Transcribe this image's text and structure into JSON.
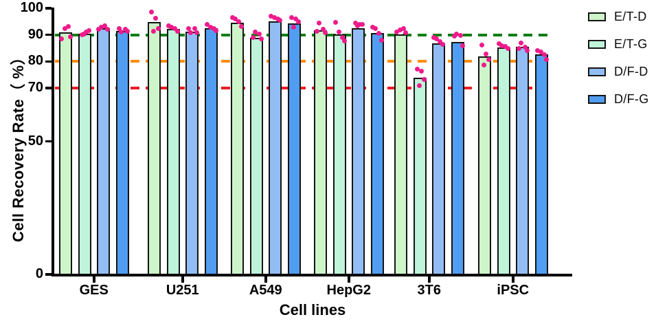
{
  "chart_data": {
    "type": "bar",
    "title": "",
    "xlabel": "Cell lines",
    "ylabel": "Cell Recovery Rate（ %）",
    "ylim": [
      0,
      100
    ],
    "y_ticks": [
      0,
      50,
      70,
      80,
      90,
      100
    ],
    "grid": false,
    "legend_position": "top-right",
    "categories": [
      "GES",
      "U251",
      "A549",
      "HepG2",
      "3T6",
      "iPSC"
    ],
    "ref_lines": [
      {
        "value": 90,
        "color": "#0e7e14",
        "style": "dashed"
      },
      {
        "value": 80,
        "color": "#ff8d0e",
        "style": "dashed"
      },
      {
        "value": 70,
        "color": "#ea1d25",
        "style": "dashed"
      }
    ],
    "point_color": "#ee1b8b",
    "series": [
      {
        "name": "E/T-D",
        "color": "#cef5ca",
        "values": [
          91.0,
          94.8,
          94.6,
          91.8,
          90.3,
          81.9
        ],
        "points": [
          [
            88.6,
            92.4,
            93.1,
            89.4
          ],
          [
            98.6,
            96.3,
            92.4,
            91.3
          ],
          [
            96.5,
            96.0,
            94.9,
            93.2
          ],
          [
            94.4,
            92.0,
            91.4,
            90.7
          ],
          [
            91.2,
            91.8,
            92.4,
            90.8
          ],
          [
            86.3,
            82.7,
            80.8,
            78.8
          ]
        ]
      },
      {
        "name": "E/T-G",
        "color": "#bff3da",
        "values": [
          90.5,
          92.3,
          89.0,
          90.2,
          74.0,
          85.3
        ],
        "points": [
          [
            90.1,
            91.0,
            91.5,
            90.4
          ],
          [
            93.4,
            93.0,
            92.4,
            91.4
          ],
          [
            91.0,
            90.4,
            89.0,
            88.5
          ],
          [
            94.7,
            91.0,
            89.0,
            87.7
          ],
          [
            77.2,
            76.3,
            73.3,
            70.9
          ],
          [
            86.7,
            85.9,
            85.6,
            84.8
          ]
        ]
      },
      {
        "name": "D/F-D",
        "color": "#92bdf4",
        "values": [
          92.5,
          91.2,
          95.2,
          92.4,
          86.8,
          85.6
        ],
        "points": [
          [
            92.1,
            93.0,
            93.4,
            92.2
          ],
          [
            90.8,
            92.4,
            92.5,
            90.9
          ],
          [
            96.9,
            96.5,
            96.0,
            95.6
          ],
          [
            94.4,
            94.0,
            93.8,
            93.4
          ],
          [
            89.0,
            88.6,
            87.5,
            86.4
          ],
          [
            86.9,
            85.3,
            85.0,
            84.0
          ]
        ]
      },
      {
        "name": "D/F-G",
        "color": "#519df2",
        "values": [
          91.5,
          92.4,
          94.2,
          90.6,
          87.4,
          82.8
        ],
        "points": [
          [
            91.1,
            92.0,
            92.5,
            91.3
          ],
          [
            93.8,
            93.0,
            92.3,
            91.5
          ],
          [
            96.5,
            96.0,
            94.9,
            92.8
          ],
          [
            93.0,
            92.4,
            90.5,
            88.0
          ],
          [
            90.3,
            89.9,
            89.5,
            85.8
          ],
          [
            84.2,
            83.6,
            82.5,
            80.7
          ]
        ]
      }
    ]
  }
}
